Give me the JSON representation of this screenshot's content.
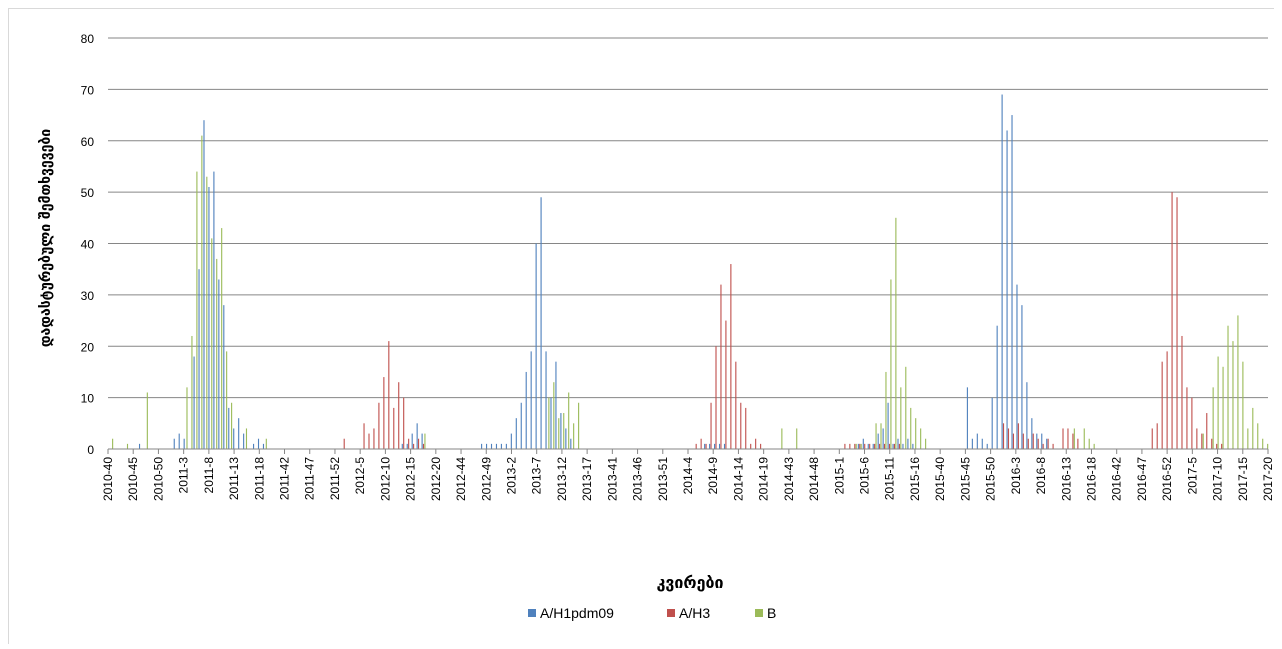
{
  "chart_data": {
    "type": "bar",
    "xlabel": "კვირები",
    "ylabel": "დადასტურებული შემთხვევები",
    "ylim": [
      0,
      80
    ],
    "yticks": [
      0,
      10,
      20,
      30,
      40,
      50,
      60,
      70,
      80
    ],
    "grid": true,
    "legend_position": "bottom",
    "category_labels": [
      "2010-40",
      "2010-45",
      "2010-50",
      "2011-3",
      "2011-8",
      "2011-13",
      "2011-18",
      "2011-42",
      "2011-47",
      "2011-52",
      "2012-5",
      "2012-10",
      "2012-15",
      "2012-20",
      "2012-44",
      "2012-49",
      "2013-2",
      "2013-7",
      "2013-12",
      "2013-17",
      "2013-41",
      "2013-46",
      "2013-51",
      "2014-4",
      "2014-9",
      "2014-14",
      "2014-19",
      "2014-43",
      "2014-48",
      "2015-1",
      "2015-6",
      "2015-11",
      "2015-16",
      "2015-40",
      "2015-45",
      "2015-50",
      "2016-3",
      "2016-8",
      "2016-13",
      "2016-18",
      "2016-42",
      "2016-47",
      "2016-52",
      "2017-5",
      "2017-10",
      "2017-15",
      "2017-20"
    ],
    "series": [
      {
        "name": "A/H1pdm09",
        "color": "#4f81bd",
        "peaks": [
          [
            6,
            1,
            0
          ],
          [
            14,
            3,
            1
          ],
          [
            18,
            35,
            1
          ],
          [
            19,
            64,
            0
          ],
          [
            20,
            51,
            0
          ],
          [
            21,
            54,
            0
          ],
          [
            22,
            33,
            1
          ],
          [
            23,
            28,
            0
          ],
          [
            24,
            8,
            1
          ],
          [
            26,
            6,
            1
          ],
          [
            30,
            2,
            1
          ],
          [
            60,
            1,
            1
          ],
          [
            62,
            5,
            1
          ],
          [
            76,
            1,
            1
          ],
          [
            80,
            1,
            2
          ],
          [
            82,
            6,
            1
          ],
          [
            83,
            9,
            1
          ],
          [
            84,
            15,
            0
          ],
          [
            85,
            19,
            0
          ],
          [
            86,
            40,
            0
          ],
          [
            87,
            49,
            0
          ],
          [
            88,
            19,
            0
          ],
          [
            89,
            10,
            0
          ],
          [
            90,
            17,
            0
          ],
          [
            91,
            7,
            0
          ],
          [
            92,
            4,
            1
          ],
          [
            122,
            1,
            2
          ],
          [
            152,
            2,
            1
          ],
          [
            156,
            4,
            2
          ],
          [
            157,
            9,
            0
          ],
          [
            159,
            2,
            1
          ],
          [
            161,
            2,
            1
          ],
          [
            173,
            12,
            0
          ],
          [
            175,
            3,
            2
          ],
          [
            178,
            10,
            0
          ],
          [
            179,
            24,
            0
          ],
          [
            180,
            69,
            0
          ],
          [
            181,
            62,
            0
          ],
          [
            182,
            65,
            0
          ],
          [
            183,
            32,
            0
          ],
          [
            184,
            28,
            0
          ],
          [
            185,
            13,
            0
          ],
          [
            186,
            6,
            1
          ],
          [
            188,
            3,
            1
          ]
        ]
      },
      {
        "name": "A/H3",
        "color": "#c0504d",
        "peaks": [
          [
            47,
            2,
            0
          ],
          [
            51,
            5,
            0
          ],
          [
            52,
            3,
            0
          ],
          [
            53,
            4,
            0
          ],
          [
            54,
            9,
            0
          ],
          [
            55,
            14,
            0
          ],
          [
            56,
            21,
            0
          ],
          [
            57,
            8,
            0
          ],
          [
            58,
            13,
            0
          ],
          [
            59,
            10,
            0
          ],
          [
            60,
            2,
            1
          ],
          [
            62,
            2,
            1
          ],
          [
            119,
            2,
            1
          ],
          [
            121,
            9,
            0
          ],
          [
            122,
            20,
            0
          ],
          [
            123,
            32,
            0
          ],
          [
            124,
            25,
            0
          ],
          [
            125,
            36,
            0
          ],
          [
            126,
            17,
            0
          ],
          [
            127,
            9,
            0
          ],
          [
            128,
            8,
            0
          ],
          [
            130,
            2,
            1
          ],
          [
            150,
            1,
            2
          ],
          [
            156,
            1,
            3
          ],
          [
            180,
            5,
            0
          ],
          [
            181,
            4,
            0
          ],
          [
            182,
            3,
            0
          ],
          [
            183,
            5,
            1
          ],
          [
            186,
            3,
            1
          ],
          [
            189,
            2,
            1
          ],
          [
            192,
            4,
            0
          ],
          [
            193,
            4,
            0
          ],
          [
            194,
            3,
            1
          ],
          [
            210,
            4,
            0
          ],
          [
            211,
            5,
            0
          ],
          [
            212,
            17,
            0
          ],
          [
            213,
            19,
            0
          ],
          [
            214,
            50,
            0
          ],
          [
            215,
            49,
            0
          ],
          [
            216,
            22,
            0
          ],
          [
            217,
            12,
            0
          ],
          [
            218,
            10,
            0
          ],
          [
            219,
            4,
            0
          ],
          [
            220,
            3,
            0
          ],
          [
            221,
            7,
            0
          ],
          [
            222,
            2,
            2
          ]
        ]
      },
      {
        "name": "B",
        "color": "#9bbb59",
        "peaks": [
          [
            0,
            2,
            0
          ],
          [
            3,
            1,
            0
          ],
          [
            7,
            11,
            0
          ],
          [
            15,
            12,
            0
          ],
          [
            16,
            22,
            1
          ],
          [
            17,
            54,
            0
          ],
          [
            18,
            61,
            0
          ],
          [
            19,
            53,
            0
          ],
          [
            20,
            41,
            0
          ],
          [
            21,
            37,
            0
          ],
          [
            22,
            43,
            0
          ],
          [
            23,
            19,
            0
          ],
          [
            24,
            9,
            0
          ],
          [
            27,
            4,
            0
          ],
          [
            31,
            2,
            0
          ],
          [
            63,
            3,
            0
          ],
          [
            88,
            10,
            0
          ],
          [
            89,
            13,
            0
          ],
          [
            90,
            6,
            0
          ],
          [
            91,
            7,
            0
          ],
          [
            92,
            11,
            0
          ],
          [
            93,
            5,
            0
          ],
          [
            94,
            9,
            0
          ],
          [
            135,
            4,
            0
          ],
          [
            138,
            4,
            0
          ],
          [
            150,
            1,
            0
          ],
          [
            151,
            1,
            0
          ],
          [
            154,
            5,
            0
          ],
          [
            155,
            5,
            0
          ],
          [
            156,
            15,
            0
          ],
          [
            157,
            33,
            0
          ],
          [
            158,
            45,
            0
          ],
          [
            159,
            12,
            0
          ],
          [
            160,
            16,
            0
          ],
          [
            161,
            8,
            0
          ],
          [
            162,
            6,
            0
          ],
          [
            163,
            4,
            1
          ],
          [
            194,
            4,
            0
          ],
          [
            196,
            4,
            0
          ],
          [
            197,
            2,
            1
          ],
          [
            220,
            3,
            0
          ],
          [
            222,
            12,
            0
          ],
          [
            223,
            18,
            0
          ],
          [
            224,
            16,
            0
          ],
          [
            225,
            24,
            0
          ],
          [
            226,
            21,
            0
          ],
          [
            227,
            26,
            0
          ],
          [
            228,
            17,
            0
          ],
          [
            229,
            4,
            0
          ],
          [
            230,
            8,
            0
          ],
          [
            231,
            5,
            0
          ],
          [
            232,
            2,
            0
          ],
          [
            233,
            1,
            0
          ]
        ]
      }
    ]
  },
  "legend": {
    "items": [
      {
        "label": "A/H1pdm09",
        "color": "#4f81bd"
      },
      {
        "label": "A/H3",
        "color": "#c0504d"
      },
      {
        "label": "B",
        "color": "#9bbb59"
      }
    ]
  }
}
